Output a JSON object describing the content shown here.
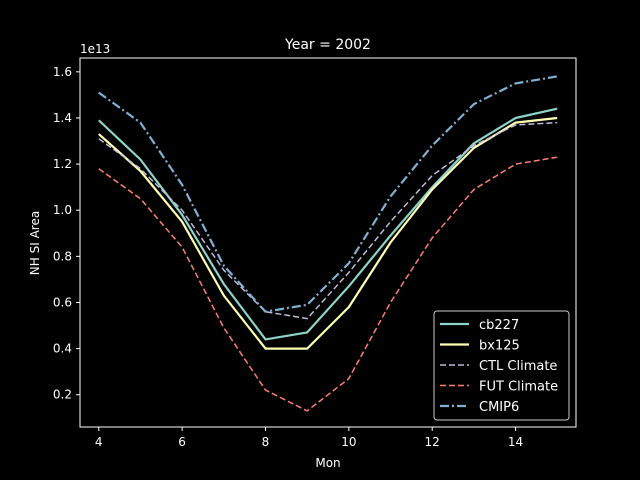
{
  "chart_data": {
    "type": "line",
    "title": "Year = 2002",
    "xlabel": "Mon",
    "ylabel": "NH SI Area",
    "y_offset_label": "1e13",
    "xlim": [
      3.55,
      15.45
    ],
    "ylim": [
      0.06,
      1.66
    ],
    "x_ticks": [
      4,
      6,
      8,
      10,
      12,
      14
    ],
    "x_tick_labels": [
      "4",
      "6",
      "8",
      "10",
      "12",
      "14"
    ],
    "y_ticks": [
      0.2,
      0.4,
      0.6,
      0.8,
      1.0,
      1.2,
      1.4,
      1.6
    ],
    "y_tick_labels": [
      "0.2",
      "0.4",
      "0.6",
      "0.8",
      "1.0",
      "1.2",
      "1.4",
      "1.6"
    ],
    "grid": false,
    "legend_position": "lower-right",
    "x": [
      4,
      5,
      6,
      7,
      8,
      9,
      10,
      11,
      12,
      13,
      14,
      15
    ],
    "series": [
      {
        "name": "cb227",
        "color": "#8dd3c7",
        "style": "solid",
        "values": [
          1.39,
          1.22,
          0.98,
          0.68,
          0.44,
          0.47,
          0.67,
          0.89,
          1.1,
          1.29,
          1.4,
          1.44
        ]
      },
      {
        "name": "bx125",
        "color": "#ffffb3",
        "style": "solid",
        "values": [
          1.33,
          1.17,
          0.95,
          0.63,
          0.4,
          0.4,
          0.58,
          0.86,
          1.09,
          1.27,
          1.38,
          1.4
        ]
      },
      {
        "name": "CTL Climate",
        "color": "#bebada",
        "style": "dashed",
        "values": [
          1.31,
          1.18,
          1.0,
          0.74,
          0.56,
          0.53,
          0.73,
          0.95,
          1.15,
          1.28,
          1.37,
          1.38
        ]
      },
      {
        "name": "FUT Climate",
        "color": "#fb8072",
        "style": "dashed",
        "values": [
          1.18,
          1.05,
          0.84,
          0.49,
          0.22,
          0.13,
          0.27,
          0.6,
          0.88,
          1.09,
          1.2,
          1.23
        ]
      },
      {
        "name": "CMIP6",
        "color": "#80b1d3",
        "style": "dashdot",
        "values": [
          1.51,
          1.38,
          1.11,
          0.76,
          0.56,
          0.59,
          0.77,
          1.06,
          1.28,
          1.46,
          1.55,
          1.58
        ]
      }
    ]
  }
}
